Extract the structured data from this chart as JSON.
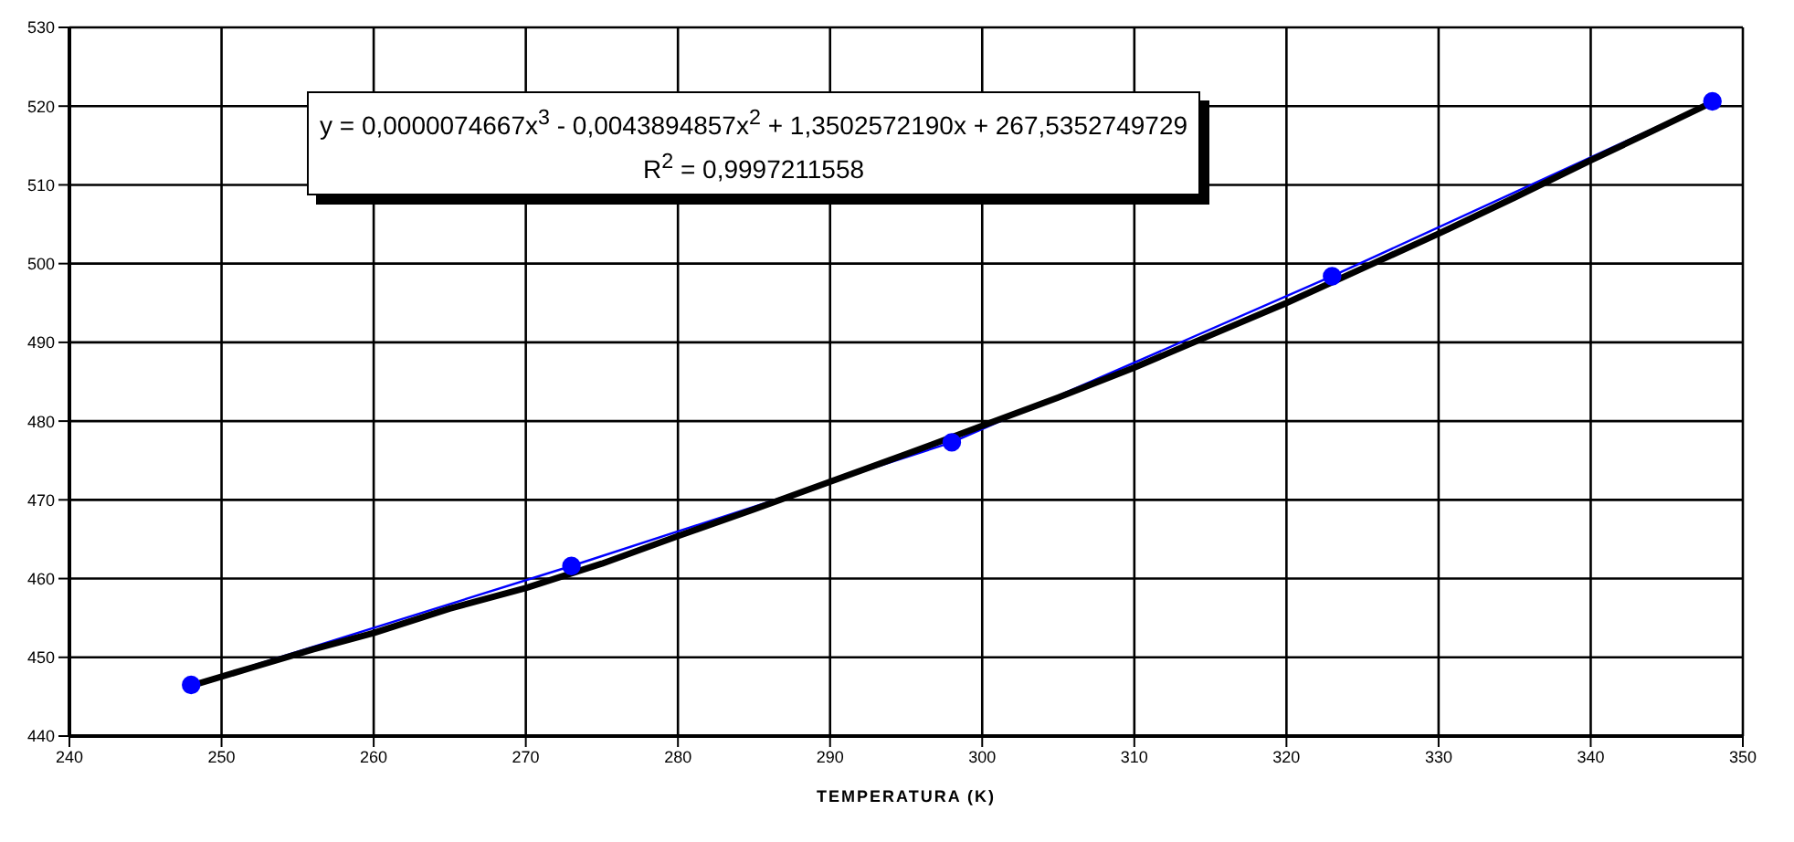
{
  "chart_data": {
    "type": "line",
    "xlabel": "TEMPERATURA (K)",
    "xlim": [
      240,
      350
    ],
    "xticks": [
      240,
      250,
      260,
      270,
      280,
      290,
      300,
      310,
      320,
      330,
      340,
      350
    ],
    "ylim": [
      440,
      530
    ],
    "yticks": [
      440,
      450,
      460,
      470,
      480,
      490,
      500,
      510,
      520,
      530
    ],
    "grid": true,
    "annotations": [
      "y = 0,0000074667x$^{3}$ - 0,0043894857x$^{2}$ + 1,3502572190x + 267,5352749729",
      "R$^{2}$ = 0,9997211558"
    ],
    "series": [
      {
        "color": "#0000ff",
        "marker": "circle",
        "x": [
          248,
          273,
          298,
          323,
          348
        ],
        "values": [
          446.5,
          461.6,
          477.3,
          498.4,
          520.6
        ]
      },
      {
        "color": "#000000",
        "marker": "none",
        "x": [
          248,
          252,
          256,
          260,
          265,
          270,
          275,
          280,
          285,
          290,
          295,
          300,
          305,
          310,
          315,
          320,
          325,
          330,
          335,
          340,
          344,
          348
        ],
        "values": [
          446.4,
          448.7,
          451,
          453.1,
          456.2,
          458.8,
          461.9,
          465.4,
          468.8,
          472.3,
          475.8,
          479.4,
          483,
          486.8,
          490.9,
          495,
          499.4,
          503.8,
          508.4,
          513.1,
          516.8,
          520.5
        ]
      }
    ]
  }
}
